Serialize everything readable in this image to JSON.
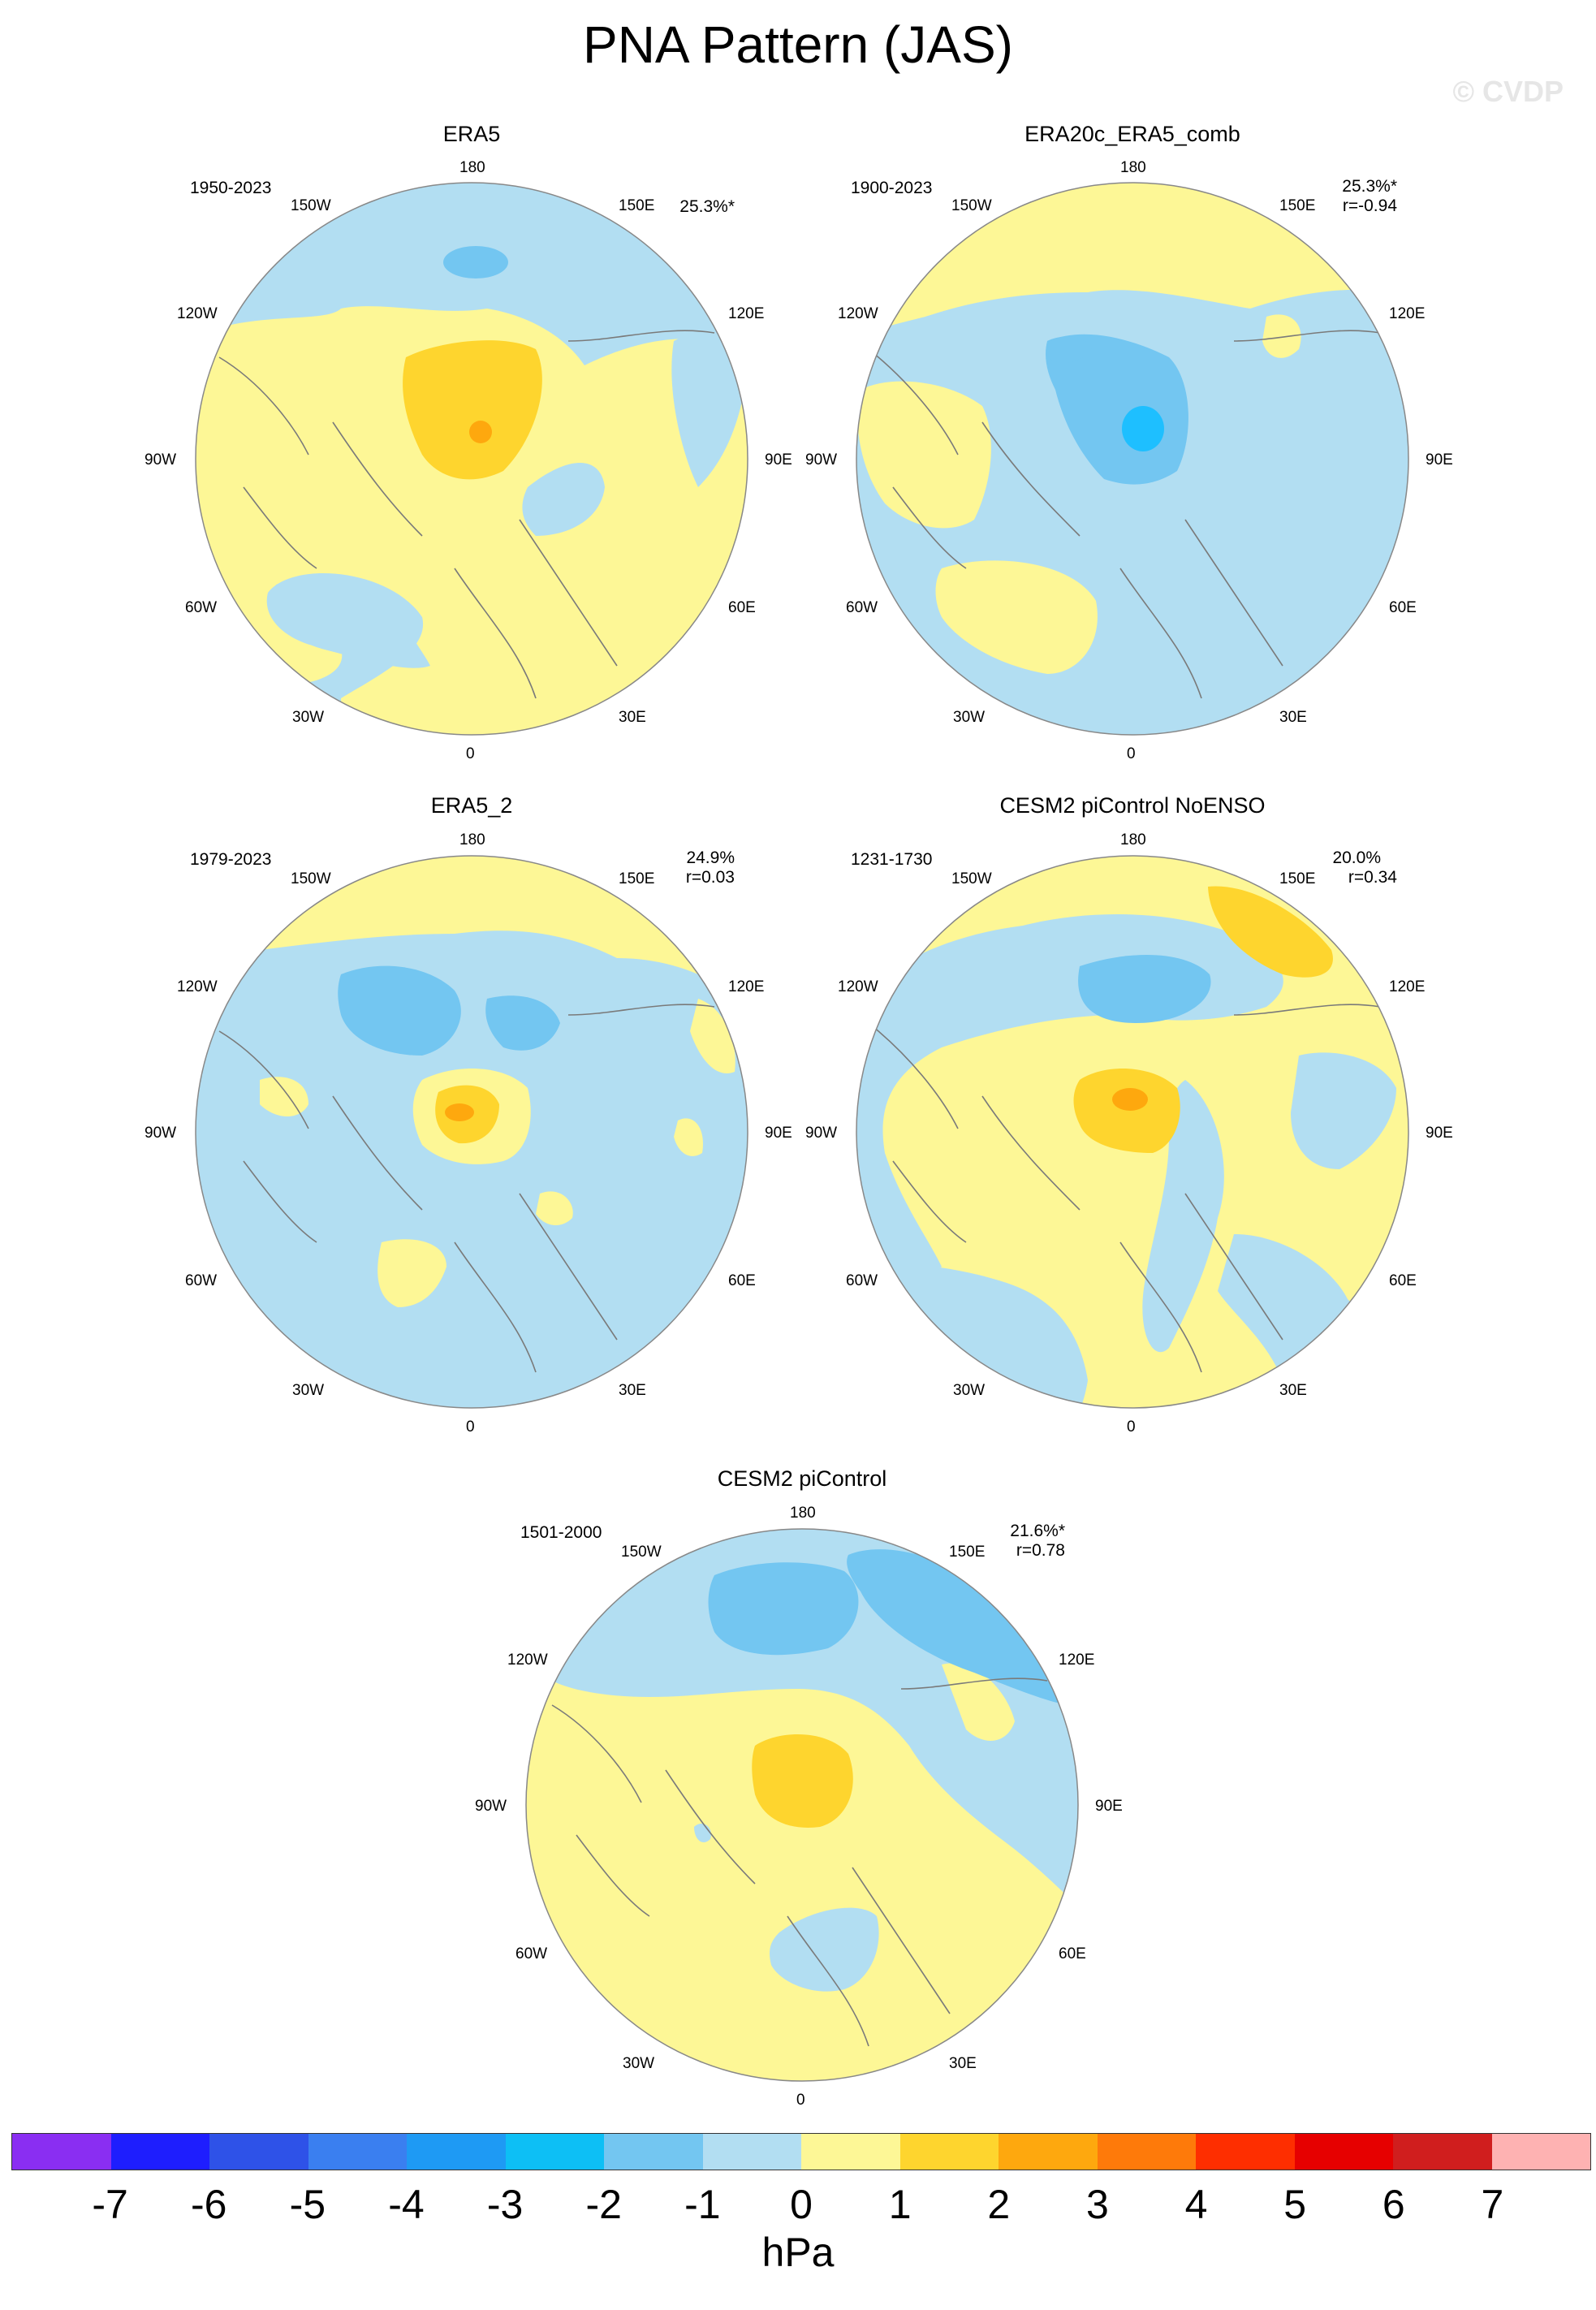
{
  "title": "PNA Pattern (JAS)",
  "watermark": "© CVDP",
  "colors": {
    "neg1": "#b2def2",
    "neg2": "#73c6f1",
    "neg3": "#1ebfff",
    "pos1": "#fdf796",
    "pos2": "#fed52e",
    "pos3": "#fea80e",
    "coast": "#7a7a7a"
  },
  "longitude_labels": {
    "top": "180",
    "bottom": "0",
    "left": "90W",
    "right": "90E",
    "upper_left_outer": "150W",
    "upper_left_inner": "120W",
    "upper_right_outer": "150E",
    "upper_right_inner": "120E",
    "lower_left_inner": "60W",
    "lower_left_outer": "30W",
    "lower_right_inner": "60E",
    "lower_right_outer": "30E"
  },
  "panels": [
    {
      "title": "ERA5",
      "years": "1950-2023",
      "variance": "25.3%*",
      "corr": ""
    },
    {
      "title": "ERA20c_ERA5_comb",
      "years": "1900-2023",
      "variance": "25.3%*",
      "corr": "r=-0.94"
    },
    {
      "title": "ERA5_2",
      "years": "1979-2023",
      "variance": "24.9%",
      "corr": "r=0.03"
    },
    {
      "title": "CESM2 piControl NoENSO",
      "years": "1231-1730",
      "variance": "20.0%",
      "corr": "r=0.34"
    },
    {
      "title": "CESM2 piControl",
      "years": "1501-2000",
      "variance": "21.6%*",
      "corr": "r=0.78"
    }
  ],
  "colorbar": {
    "colors": [
      "#8a2ef2",
      "#1e1efe",
      "#2e52e8",
      "#3a7ff0",
      "#1e9af4",
      "#0dbff5",
      "#73c6f1",
      "#b2def2",
      "#fdf796",
      "#fed52e",
      "#fea80e",
      "#fe7a0a",
      "#fe2e00",
      "#e60000",
      "#d01e1e",
      "#feb2b2"
    ],
    "tick_labels": [
      "-7",
      "-6",
      "-5",
      "-4",
      "-3",
      "-2",
      "-1",
      "0",
      "1",
      "2",
      "3",
      "4",
      "5",
      "6",
      "7"
    ],
    "units": "hPa"
  }
}
